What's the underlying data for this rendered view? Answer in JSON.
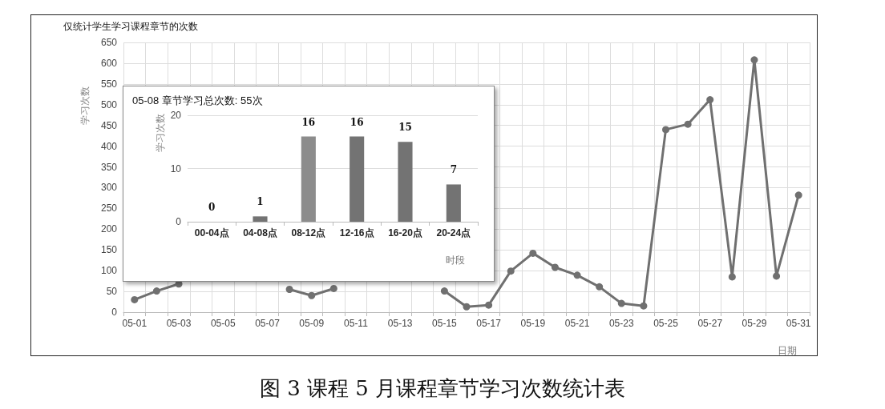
{
  "chart_data": [
    {
      "type": "line",
      "title": "仅统计学生学习课程章节的次数",
      "ylabel": "学习次数",
      "xlabel": "日期",
      "categories": [
        "05-01",
        null,
        "05-03",
        null,
        "05-05",
        null,
        "05-07",
        null,
        "05-09",
        null,
        "05-11",
        null,
        "05-13",
        null,
        "05-15",
        null,
        "05-17",
        null,
        "05-19",
        null,
        "05-21",
        null,
        "05-23",
        null,
        "05-25",
        null,
        "05-27",
        null,
        "05-29",
        null,
        "05-31"
      ],
      "series": [
        {
          "color": "#707070",
          "values": [
            30,
            51,
            68,
            null,
            null,
            null,
            null,
            55,
            40,
            57,
            null,
            null,
            null,
            null,
            51,
            13,
            17,
            99,
            142,
            108,
            89,
            61,
            21,
            15,
            440,
            453,
            512,
            85,
            608,
            87,
            282
          ]
        }
      ],
      "ylim": [
        0,
        650
      ],
      "yticks": [
        0,
        50,
        100,
        150,
        200,
        250,
        300,
        350,
        400,
        450,
        500,
        550,
        600,
        650
      ],
      "grid": true,
      "marker": "circle",
      "line_style": "solid",
      "annotations": [
        "图 3 课程 5 月课程章节学习次数统计表"
      ]
    },
    {
      "type": "bar",
      "title": "05-08 章节学习总次数: 55次",
      "ylabel": "学习次数",
      "xlabel": "时段",
      "categories": [
        "00-04点",
        "04-08点",
        "08-12点",
        "12-16点",
        "16-20点",
        "20-24点"
      ],
      "values": [
        0,
        1,
        16,
        16,
        15,
        7
      ],
      "colors": [
        "#737373",
        "#737373",
        "#8c8c8c",
        "#737373",
        "#737373",
        "#737373"
      ],
      "ylim": [
        0,
        20
      ],
      "yticks": [
        0,
        10,
        20
      ],
      "grid": "y",
      "data_labels": true
    }
  ]
}
